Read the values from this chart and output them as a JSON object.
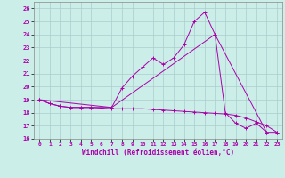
{
  "xlabel": "Windchill (Refroidissement éolien,°C)",
  "background_color": "#cceee8",
  "grid_color": "#aacccc",
  "line_color": "#aa00aa",
  "xlim": [
    -0.5,
    23.5
  ],
  "ylim": [
    16,
    26.5
  ],
  "yticks": [
    16,
    17,
    18,
    19,
    20,
    21,
    22,
    23,
    24,
    25,
    26
  ],
  "xticks": [
    0,
    1,
    2,
    3,
    4,
    5,
    6,
    7,
    8,
    9,
    10,
    11,
    12,
    13,
    14,
    15,
    16,
    17,
    18,
    19,
    20,
    21,
    22,
    23
  ],
  "line1_x": [
    0,
    1,
    2,
    3,
    4,
    5,
    6,
    7,
    8,
    9,
    10,
    11,
    12,
    13,
    14,
    15,
    16,
    17,
    18,
    19,
    20,
    21,
    22
  ],
  "line1_y": [
    19.0,
    18.7,
    18.5,
    18.4,
    18.4,
    18.4,
    18.4,
    18.4,
    19.9,
    20.8,
    21.5,
    22.2,
    21.7,
    22.2,
    23.2,
    25.0,
    25.7,
    24.0,
    18.0,
    17.2,
    16.8,
    17.2,
    16.5
  ],
  "line2_x": [
    0,
    1,
    2,
    3,
    4,
    5,
    6,
    7,
    8,
    9,
    10,
    11,
    12,
    13,
    14,
    15,
    16,
    17,
    18,
    19,
    20,
    21,
    22,
    23
  ],
  "line2_y": [
    19.0,
    18.7,
    18.5,
    18.4,
    18.4,
    18.4,
    18.35,
    18.3,
    18.3,
    18.3,
    18.3,
    18.25,
    18.2,
    18.15,
    18.1,
    18.05,
    18.0,
    17.95,
    17.9,
    17.8,
    17.6,
    17.3,
    17.0,
    16.5
  ],
  "line3_x": [
    0,
    7,
    17,
    22,
    23
  ],
  "line3_y": [
    19.0,
    18.4,
    24.0,
    16.5,
    16.5
  ],
  "figsize": [
    3.2,
    2.0
  ],
  "dpi": 100
}
